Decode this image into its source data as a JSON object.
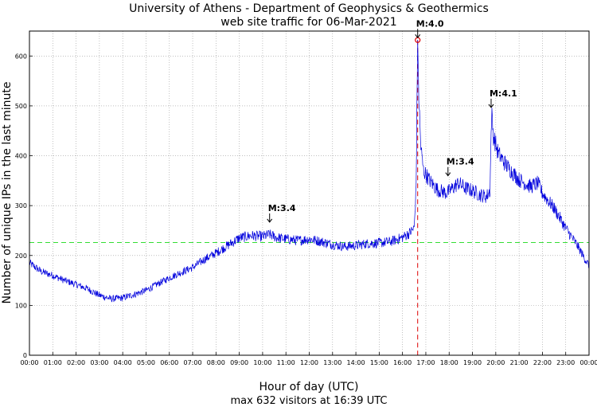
{
  "chart_data": {
    "type": "line",
    "title": "University of Athens - Department of Geophysics & Geothermics",
    "subtitle": "web site traffic for 06-Mar-2021",
    "xlabel": "Hour of day (UTC)",
    "ylabel": "Number of unique IPs in the last minute",
    "footer": "max 632 visitors at 16:39 UTC",
    "xlim": [
      0,
      24
    ],
    "ylim": [
      0,
      650
    ],
    "x_tick_labels": [
      "00:00",
      "01:00",
      "02:00",
      "03:00",
      "04:00",
      "05:00",
      "06:00",
      "07:00",
      "08:00",
      "09:00",
      "10:00",
      "11:00",
      "12:00",
      "13:00",
      "14:00",
      "15:00",
      "16:00",
      "17:00",
      "18:00",
      "19:00",
      "20:00",
      "21:00",
      "22:00",
      "23:00",
      "00:00"
    ],
    "y_ticks": [
      0,
      100,
      200,
      300,
      400,
      500,
      600
    ],
    "grid": true,
    "average_line": 226,
    "max": {
      "hour": 16.65,
      "value": 632,
      "label": "16:39"
    },
    "series": [
      {
        "name": "unique IPs per minute",
        "color": "#0000dd",
        "points": [
          [
            0,
            185
          ],
          [
            0.5,
            168
          ],
          [
            1,
            160
          ],
          [
            1.5,
            150
          ],
          [
            2,
            142
          ],
          [
            2.5,
            133
          ],
          [
            3,
            120
          ],
          [
            3.5,
            113
          ],
          [
            4,
            115
          ],
          [
            4.5,
            122
          ],
          [
            5,
            130
          ],
          [
            5.5,
            143
          ],
          [
            6,
            155
          ],
          [
            6.5,
            166
          ],
          [
            7,
            176
          ],
          [
            7.5,
            192
          ],
          [
            8,
            205
          ],
          [
            8.5,
            220
          ],
          [
            9,
            235
          ],
          [
            9.5,
            240
          ],
          [
            10,
            238
          ],
          [
            10.3,
            242
          ],
          [
            10.6,
            236
          ],
          [
            11,
            233
          ],
          [
            11.5,
            230
          ],
          [
            12,
            233
          ],
          [
            12.5,
            228
          ],
          [
            13,
            222
          ],
          [
            13.5,
            218
          ],
          [
            14,
            220
          ],
          [
            14.5,
            224
          ],
          [
            15,
            225
          ],
          [
            15.5,
            228
          ],
          [
            16,
            236
          ],
          [
            16.3,
            245
          ],
          [
            16.5,
            255
          ],
          [
            16.58,
            330
          ],
          [
            16.62,
            500
          ],
          [
            16.65,
            632
          ],
          [
            16.7,
            520
          ],
          [
            16.78,
            420
          ],
          [
            16.9,
            370
          ],
          [
            17.2,
            348
          ],
          [
            17.5,
            332
          ],
          [
            17.9,
            325
          ],
          [
            18.1,
            333
          ],
          [
            18.4,
            345
          ],
          [
            18.7,
            335
          ],
          [
            19.0,
            330
          ],
          [
            19.3,
            322
          ],
          [
            19.6,
            318
          ],
          [
            19.75,
            330
          ],
          [
            19.82,
            486
          ],
          [
            19.9,
            440
          ],
          [
            20.1,
            405
          ],
          [
            20.5,
            378
          ],
          [
            21.0,
            352
          ],
          [
            21.5,
            338
          ],
          [
            21.8,
            345
          ],
          [
            22.0,
            325
          ],
          [
            22.5,
            295
          ],
          [
            23.0,
            255
          ],
          [
            23.5,
            220
          ],
          [
            23.8,
            195
          ],
          [
            24.0,
            180
          ]
        ]
      }
    ],
    "events": [
      {
        "label": "M:3.4",
        "hour": 10.3,
        "value": 262
      },
      {
        "label": "M:4.0",
        "hour": 16.65,
        "value": 632
      },
      {
        "label": "M:3.4",
        "hour": 17.95,
        "value": 355
      },
      {
        "label": "M:4.1",
        "hour": 19.8,
        "value": 492
      }
    ],
    "colors": {
      "axes": "#000000",
      "grid": "#999999",
      "average": "#33dd33",
      "max_marker": "#dd0000",
      "background": "#ffffff"
    }
  }
}
